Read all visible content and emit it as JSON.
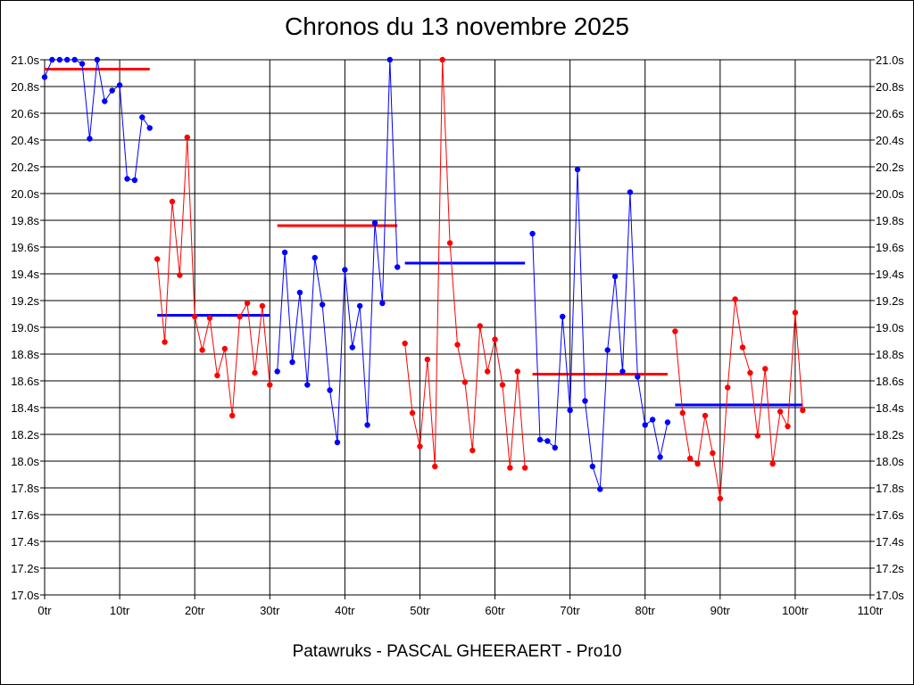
{
  "chart_data": {
    "type": "line",
    "title": "Chronos du 13 novembre 2025",
    "subtitle": "Patawruks - PASCAL GHEERAERT - Pro10",
    "xlim": [
      0,
      110
    ],
    "ylim": [
      17.0,
      21.0
    ],
    "x_ticks": [
      0,
      10,
      20,
      30,
      40,
      50,
      60,
      70,
      80,
      90,
      100,
      110
    ],
    "x_tick_labels": [
      "0tr",
      "10tr",
      "20tr",
      "30tr",
      "40tr",
      "50tr",
      "60tr",
      "70tr",
      "80tr",
      "90tr",
      "100tr",
      "110tr"
    ],
    "y_ticks": [
      17.0,
      17.2,
      17.4,
      17.6,
      17.8,
      18.0,
      18.2,
      18.4,
      18.6,
      18.8,
      19.0,
      19.2,
      19.4,
      19.6,
      19.8,
      20.0,
      20.2,
      20.4,
      20.6,
      20.8,
      21.0
    ],
    "y_tick_labels": [
      "17.0s",
      "17.2s",
      "17.4s",
      "17.6s",
      "17.8s",
      "18.0s",
      "18.2s",
      "18.4s",
      "18.6s",
      "18.8s",
      "19.0s",
      "19.2s",
      "19.4s",
      "19.6s",
      "19.8s",
      "20.0s",
      "20.2s",
      "20.4s",
      "20.6s",
      "20.8s",
      "21.0s"
    ],
    "grid": true,
    "colors": {
      "blue": "#0000ff",
      "red": "#ff0000"
    },
    "series": [
      {
        "color": "#0000ff",
        "x": [
          0,
          1,
          2,
          3,
          4,
          5,
          6,
          7,
          8,
          9,
          10,
          11,
          12,
          13,
          14
        ],
        "y": [
          20.87,
          21.0,
          21.0,
          21.0,
          21.0,
          20.97,
          20.41,
          21.0,
          20.69,
          20.77,
          20.81,
          20.11,
          20.1,
          20.57,
          20.49
        ]
      },
      {
        "color": "#ff0000",
        "x": [
          15,
          16,
          17,
          18,
          19,
          20,
          21,
          22,
          23,
          24,
          25,
          26,
          27,
          28,
          29,
          30
        ],
        "y": [
          19.51,
          18.89,
          19.94,
          19.39,
          20.42,
          19.08,
          18.83,
          19.07,
          18.64,
          18.84,
          18.34,
          19.08,
          19.18,
          18.66,
          19.16,
          18.57
        ]
      },
      {
        "color": "#0000ff",
        "x": [
          31,
          32,
          33,
          34,
          35,
          36,
          37,
          38,
          39,
          40,
          41,
          42,
          43,
          44,
          45,
          46,
          47
        ],
        "y": [
          18.67,
          19.56,
          18.74,
          19.26,
          18.57,
          19.52,
          19.17,
          18.53,
          18.14,
          19.43,
          18.85,
          19.16,
          18.27,
          19.78,
          19.18,
          21.0,
          19.45
        ]
      },
      {
        "color": "#ff0000",
        "x": [
          48,
          49,
          50,
          51,
          52,
          53,
          54,
          55,
          56,
          57,
          58,
          59,
          60,
          61,
          62,
          63,
          64
        ],
        "y": [
          18.88,
          18.36,
          18.11,
          18.76,
          17.96,
          21.0,
          19.63,
          18.87,
          18.59,
          18.08,
          19.01,
          18.67,
          18.91,
          18.57,
          17.95,
          18.67,
          17.95
        ]
      },
      {
        "color": "#0000ff",
        "x": [
          65,
          66,
          67,
          68,
          69,
          70,
          71,
          72,
          73,
          74,
          75,
          76,
          77,
          78,
          79,
          80,
          81,
          82,
          83
        ],
        "y": [
          19.7,
          18.16,
          18.15,
          18.1,
          19.08,
          18.38,
          20.18,
          18.45,
          17.96,
          17.79,
          18.83,
          19.38,
          18.67,
          20.01,
          18.63,
          18.27,
          18.31,
          18.03,
          18.29
        ]
      },
      {
        "color": "#ff0000",
        "x": [
          84,
          85,
          86,
          87,
          88,
          89,
          90,
          91,
          92,
          93,
          94,
          95,
          96,
          97,
          98,
          99,
          100,
          101
        ],
        "y": [
          18.97,
          18.36,
          18.02,
          17.98,
          18.34,
          18.06,
          17.72,
          18.55,
          19.21,
          18.85,
          18.66,
          18.19,
          18.69,
          17.98,
          18.37,
          18.26,
          19.11,
          18.38
        ]
      }
    ],
    "averages": [
      {
        "color": "#ff0000",
        "x": [
          0,
          14
        ],
        "y": 20.93
      },
      {
        "color": "#0000ff",
        "x": [
          15,
          30
        ],
        "y": 19.09
      },
      {
        "color": "#ff0000",
        "x": [
          31,
          47
        ],
        "y": 19.76
      },
      {
        "color": "#0000ff",
        "x": [
          48,
          64
        ],
        "y": 19.48
      },
      {
        "color": "#ff0000",
        "x": [
          65,
          83
        ],
        "y": 18.65
      },
      {
        "color": "#0000ff",
        "x": [
          84,
          101
        ],
        "y": 18.42
      }
    ]
  }
}
